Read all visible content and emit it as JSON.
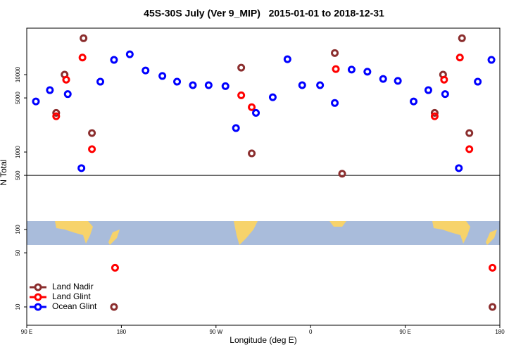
{
  "chart_data": {
    "type": "scatter",
    "title": "45S-30S July (Ver 9_MIP)   2015-01-01 to 2018-12-31",
    "x_label": "Longitude (deg E)",
    "y_label": "N Total",
    "xlim": [
      90,
      540
    ],
    "xticks": [
      {
        "value": 90,
        "label": "90 E"
      },
      180,
      {
        "value": 270,
        "label": "90 W"
      },
      {
        "value": 360,
        "label": "0"
      },
      {
        "value": 450,
        "label": "90 E"
      },
      {
        "value": 540,
        "label": "180"
      }
    ],
    "ylim": [
      5.8,
      39800
    ],
    "yticks": [
      10,
      50,
      100,
      500,
      1000,
      5000,
      10000
    ],
    "log_y": true,
    "reference_line": 500,
    "legend": "bottom-left",
    "series": [
      {
        "name": "Land Nadir",
        "color": "#8b2e2e",
        "x": [
          118,
          126,
          144,
          152,
          173,
          294,
          304,
          383,
          390,
          478,
          486,
          504,
          511,
          533
        ],
        "values": [
          3200,
          10000,
          29500,
          1760,
          10,
          12300,
          960,
          19000,
          525,
          3200,
          10000,
          29500,
          1760,
          10
        ]
      },
      {
        "name": "Land Glint",
        "color": "#ff0000",
        "x": [
          118,
          127.5,
          143,
          152,
          174,
          294,
          304,
          384,
          478,
          487,
          502,
          511,
          533
        ],
        "values": [
          2900,
          8600,
          16600,
          1090,
          32,
          5400,
          3800,
          11800,
          2900,
          8600,
          16600,
          1090,
          32
        ]
      },
      {
        "name": "Ocean Glint",
        "color": "#0000ff",
        "x": [
          98.7,
          112,
          129,
          142,
          160,
          173,
          188,
          203,
          219,
          233,
          248,
          263,
          279,
          289,
          308,
          324,
          338,
          352,
          369,
          383,
          399,
          414,
          429,
          443,
          458,
          472,
          488,
          501,
          519,
          532
        ],
        "values": [
          4500,
          6300,
          5600,
          620,
          8100,
          15500,
          18300,
          11300,
          9600,
          8100,
          7300,
          7300,
          7100,
          2040,
          3200,
          5100,
          15800,
          7300,
          7300,
          4300,
          11600,
          10900,
          8800,
          8300,
          4500,
          6300,
          5600,
          620,
          8100,
          15500
        ]
      }
    ]
  }
}
